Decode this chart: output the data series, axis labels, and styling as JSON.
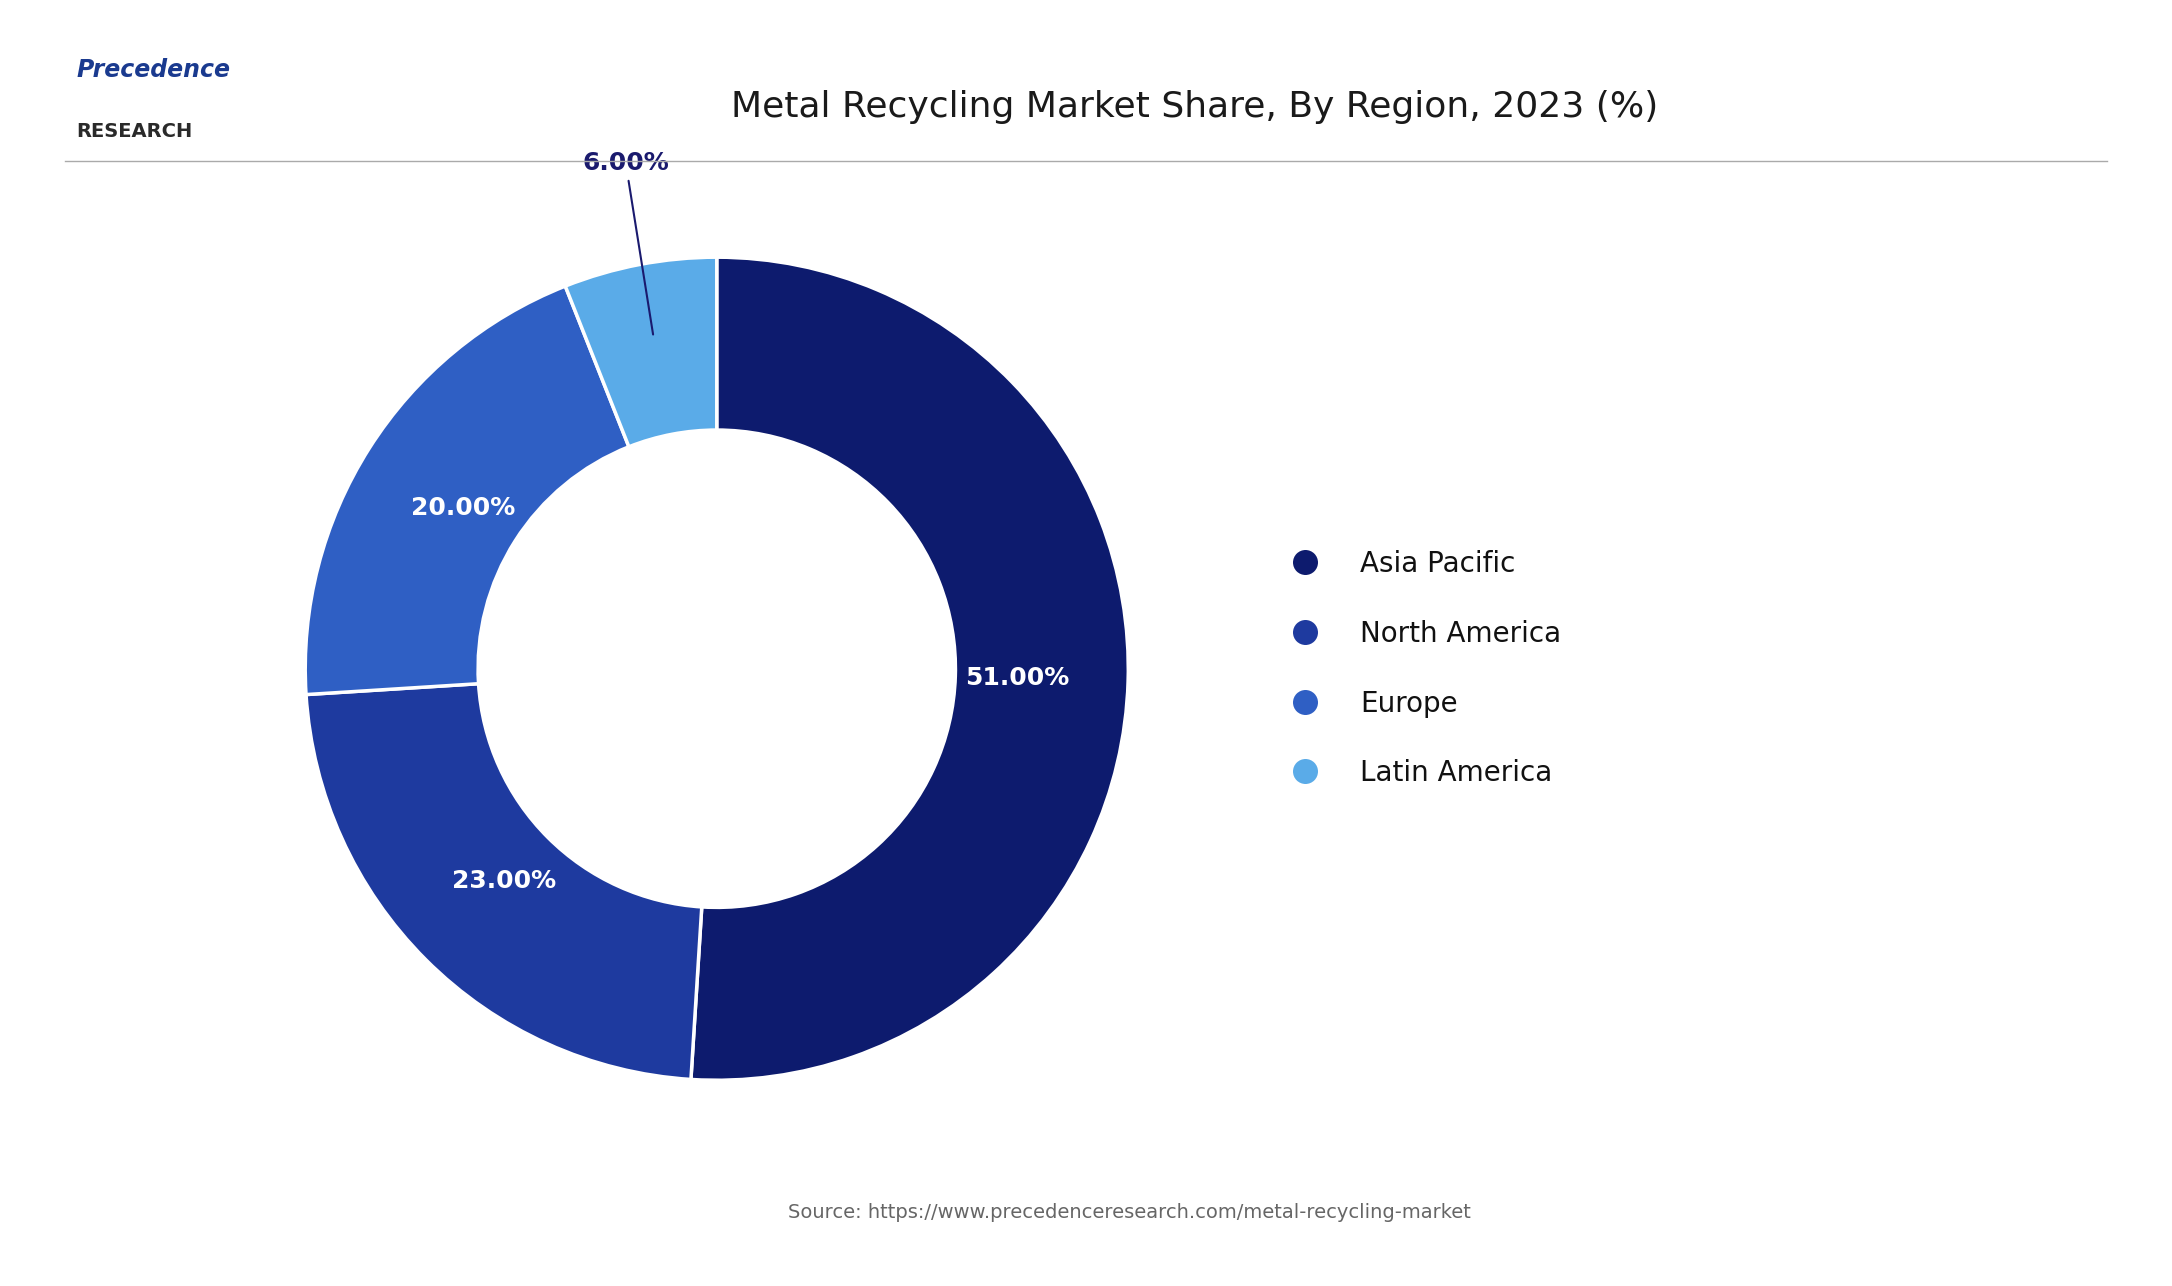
{
  "title": "Metal Recycling Market Share, By Region, 2023 (%)",
  "source_text": "Source: https://www.precedenceresearch.com/metal-recycling-market",
  "labels": [
    "Asia Pacific",
    "North America",
    "Europe",
    "Latin America"
  ],
  "values": [
    51.0,
    23.0,
    20.0,
    6.0
  ],
  "colors": [
    "#0d1b6e",
    "#1e3a9f",
    "#2f5fc4",
    "#5aabe8"
  ],
  "pct_labels": [
    "51.00%",
    "23.00%",
    "20.00%",
    "6.00%"
  ],
  "background_color": "#ffffff",
  "title_fontsize": 26,
  "label_fontsize": 18,
  "legend_fontsize": 20,
  "source_fontsize": 14,
  "donut_width": 0.42,
  "start_angle": 90
}
